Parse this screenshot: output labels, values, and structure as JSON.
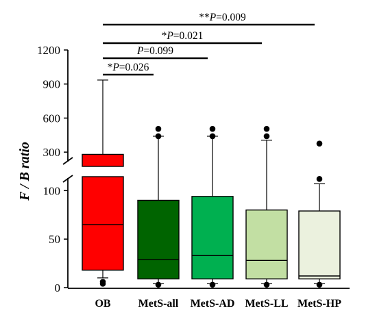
{
  "chart_data": {
    "type": "box",
    "ylabel": "F / B ratio",
    "categories": [
      "OB",
      "MetS-all",
      "MetS-AD",
      "MetS-LL",
      "MetS-HP"
    ],
    "y_axis": {
      "broken": true,
      "lower_segment": {
        "range": [
          0,
          120
        ],
        "ticks": [
          0,
          50,
          100
        ]
      },
      "upper_segment": {
        "range": [
          150,
          1200
        ],
        "ticks": [
          300,
          600,
          900,
          1200
        ]
      }
    },
    "series": [
      {
        "category": "OB",
        "color": "#ff0000",
        "whisker_low": 10,
        "q1": 18,
        "median": 65,
        "q3": 280,
        "whisker_high": 935,
        "outliers": [
          6,
          4
        ]
      },
      {
        "category": "MetS-all",
        "color": "#006400",
        "whisker_low": 4,
        "q1": 9,
        "median": 29,
        "q3": 90,
        "whisker_high": 440,
        "outliers": [
          505,
          440,
          3
        ]
      },
      {
        "category": "MetS-AD",
        "color": "#00b050",
        "whisker_low": 4,
        "q1": 9,
        "median": 33,
        "q3": 94,
        "whisker_high": 440,
        "outliers": [
          505,
          440,
          3
        ]
      },
      {
        "category": "MetS-LL",
        "color": "#c2dfa3",
        "whisker_low": 4,
        "q1": 9,
        "median": 28,
        "q3": 80,
        "whisker_high": 405,
        "outliers": [
          505,
          440,
          3
        ]
      },
      {
        "category": "MetS-HP",
        "color": "#ebf1de",
        "whisker_low": 4,
        "q1": 9,
        "median": 12,
        "q3": 79,
        "whisker_high": 107,
        "outliers": [
          375,
          112,
          3
        ]
      }
    ],
    "significance": [
      {
        "label_prefix": "*",
        "label_italic": "P",
        "label_suffix": "=0.026",
        "from": "OB",
        "to": "MetS-all"
      },
      {
        "label_prefix": "",
        "label_italic": "P",
        "label_suffix": "=0.099",
        "from": "OB",
        "to": "MetS-AD"
      },
      {
        "label_prefix": "*",
        "label_italic": "P",
        "label_suffix": "=0.021",
        "from": "OB",
        "to": "MetS-LL"
      },
      {
        "label_prefix": "**",
        "label_italic": "P",
        "label_suffix": "=0.009",
        "from": "OB",
        "to": "MetS-HP"
      }
    ]
  }
}
